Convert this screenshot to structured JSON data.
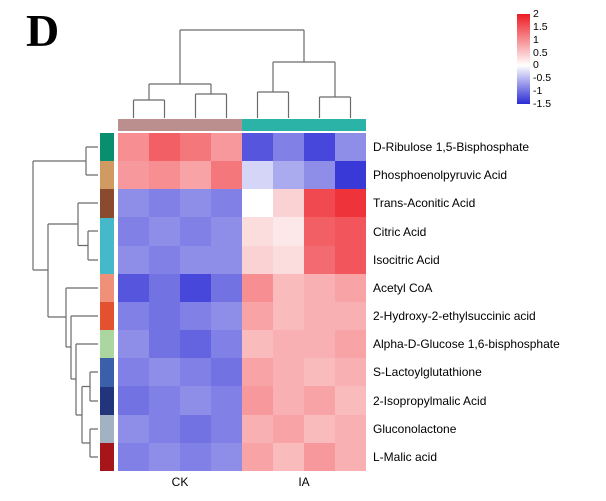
{
  "panel_label": "D",
  "groups": {
    "ck_label": "CK",
    "ia_label": "IA"
  },
  "legend": {
    "ticks": [
      "2",
      "1.5",
      "1",
      "0.5",
      "0",
      "-0.5",
      "-1",
      "-1.5"
    ]
  },
  "colors": {
    "heat_positive": "#ed1c24",
    "heat_zero": "#ffffff",
    "heat_negative": "#2b2bd5",
    "group_ck": "#bc8f8f",
    "group_ia": "#2ab3a6",
    "row_annotation": [
      "#0a8f6e",
      "#d09a62",
      "#8a4a2e",
      "#45b9c9",
      "#45b9c9",
      "#ef9078",
      "#e3512f",
      "#abd6a0",
      "#3b5fa9",
      "#22357c",
      "#a3b2c2",
      "#a6151a"
    ]
  },
  "chart_data": {
    "type": "heatmap",
    "title": "",
    "rows": [
      "D-Ribulose 1,5-Bisphosphate",
      "Phosphoenolpyruvic Acid",
      "Trans-Aconitic Acid",
      "Citric Acid",
      "Isocitric Acid",
      "Acetyl CoA",
      "2-Hydroxy-2-ethylsuccinic acid",
      "Alpha-D-Glucose 1,6-bisphosphate",
      "S-Lactoylglutathione",
      "2-Isopropylmalic Acid",
      "Gluconolactone",
      "L-Malic acid"
    ],
    "column_groups": [
      {
        "label": "CK",
        "n_columns": 4
      },
      {
        "label": "IA",
        "n_columns": 4
      }
    ],
    "scale_min": -1.5,
    "scale_max": 2,
    "legend_tick_values": [
      2,
      1.5,
      1,
      0.5,
      0,
      -0.5,
      -1,
      -1.5
    ],
    "values": [
      [
        1.0,
        1.4,
        1.2,
        0.9,
        -1.2,
        -0.9,
        -1.3,
        -0.8
      ],
      [
        0.9,
        1.0,
        0.8,
        1.2,
        -0.3,
        -0.6,
        -0.8,
        -1.4
      ],
      [
        -0.8,
        -0.9,
        -0.8,
        -0.9,
        0.0,
        0.4,
        1.6,
        1.8
      ],
      [
        -0.9,
        -0.8,
        -0.9,
        -0.8,
        0.3,
        0.2,
        1.4,
        1.5
      ],
      [
        -0.8,
        -0.9,
        -0.8,
        -0.8,
        0.4,
        0.3,
        1.3,
        1.5
      ],
      [
        -1.2,
        -1.0,
        -1.3,
        -1.0,
        1.0,
        0.6,
        0.7,
        0.8
      ],
      [
        -0.9,
        -1.0,
        -0.9,
        -0.8,
        0.8,
        0.6,
        0.7,
        0.7
      ],
      [
        -0.8,
        -1.0,
        -1.1,
        -0.9,
        0.6,
        0.7,
        0.7,
        0.8
      ],
      [
        -0.9,
        -0.8,
        -0.9,
        -1.0,
        0.8,
        0.7,
        0.6,
        0.7
      ],
      [
        -1.0,
        -0.9,
        -0.8,
        -0.9,
        0.9,
        0.7,
        0.8,
        0.6
      ],
      [
        -0.8,
        -0.9,
        -1.0,
        -0.9,
        0.7,
        0.8,
        0.6,
        0.7
      ],
      [
        -0.9,
        -0.8,
        -0.9,
        -0.8,
        0.8,
        0.6,
        0.9,
        0.7
      ]
    ]
  }
}
